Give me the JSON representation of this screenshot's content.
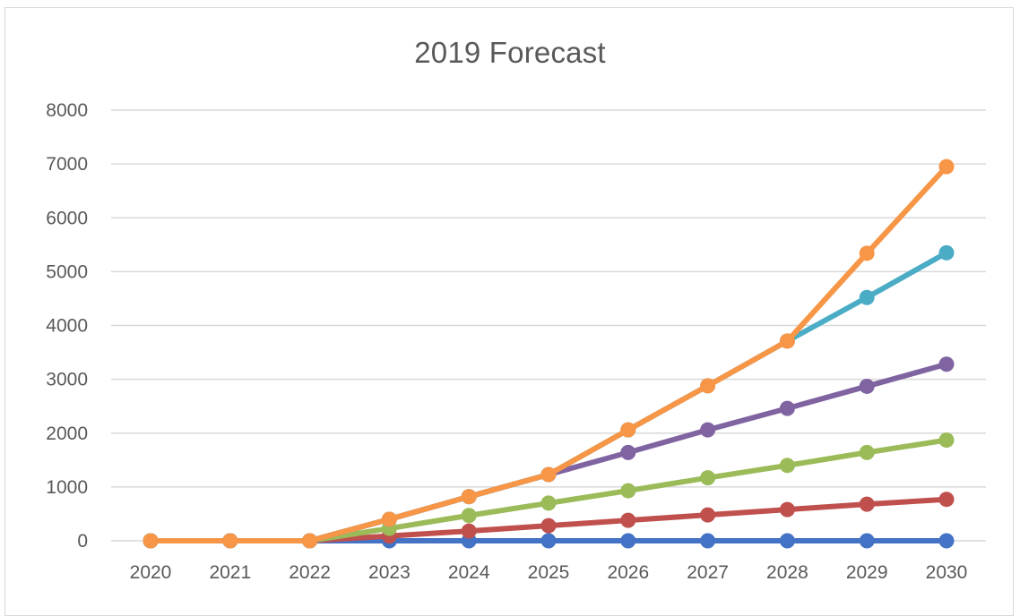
{
  "chart_data": {
    "type": "line",
    "title": "2019 Forecast",
    "xlabel": "",
    "ylabel": "",
    "x": [
      "2020",
      "2021",
      "2022",
      "2023",
      "2024",
      "2025",
      "2026",
      "2027",
      "2028",
      "2029",
      "2030"
    ],
    "ylim": [
      0,
      8000
    ],
    "yticks": [
      0,
      1000,
      2000,
      3000,
      4000,
      5000,
      6000,
      7000,
      8000
    ],
    "grid": true,
    "legend": "none",
    "series": [
      {
        "color": "#4472C4",
        "values": [
          0,
          0,
          0,
          0,
          0,
          0,
          0,
          0,
          0,
          0,
          0
        ]
      },
      {
        "color": "#C0504D",
        "values": [
          0,
          0,
          0,
          90,
          180,
          280,
          380,
          480,
          580,
          680,
          770
        ]
      },
      {
        "color": "#9BBB59",
        "values": [
          0,
          0,
          0,
          230,
          470,
          700,
          930,
          1170,
          1400,
          1640,
          1870
        ]
      },
      {
        "color": "#8064A2",
        "values": [
          0,
          0,
          0,
          400,
          820,
          1230,
          1640,
          2060,
          2460,
          2870,
          3280
        ]
      },
      {
        "color": "#4BACC6",
        "values": [
          0,
          0,
          0,
          400,
          820,
          1230,
          2060,
          2880,
          3710,
          4520,
          5350
        ]
      },
      {
        "color": "#F79646",
        "values": [
          0,
          0,
          0,
          400,
          820,
          1230,
          2060,
          2880,
          3710,
          5340,
          6950
        ]
      }
    ]
  }
}
